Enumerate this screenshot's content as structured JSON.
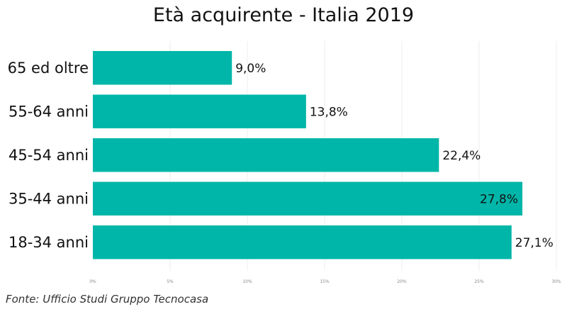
{
  "chart_data": {
    "type": "bar",
    "orientation": "horizontal",
    "title": "Età acquirente - Italia 2019",
    "categories": [
      "65 ed oltre",
      "55-64 anni",
      "45-54 anni",
      "35-44 anni",
      "18-34 anni"
    ],
    "values": [
      9.0,
      13.8,
      22.4,
      27.8,
      27.1
    ],
    "value_labels": [
      "9,0%",
      "13,8%",
      "22,4%",
      "27,8%",
      "27,1%"
    ],
    "xlim": [
      0,
      30
    ],
    "xticks": [
      0,
      5,
      10,
      15,
      20,
      25,
      30
    ],
    "xtick_labels": [
      "0%",
      "5%",
      "10%",
      "15%",
      "20%",
      "25%",
      "30%"
    ],
    "bar_color": "#00b6a8",
    "grid": true,
    "xlabel": "",
    "ylabel": ""
  },
  "source": "Fonte: Ufficio Studi Gruppo Tecnocasa"
}
